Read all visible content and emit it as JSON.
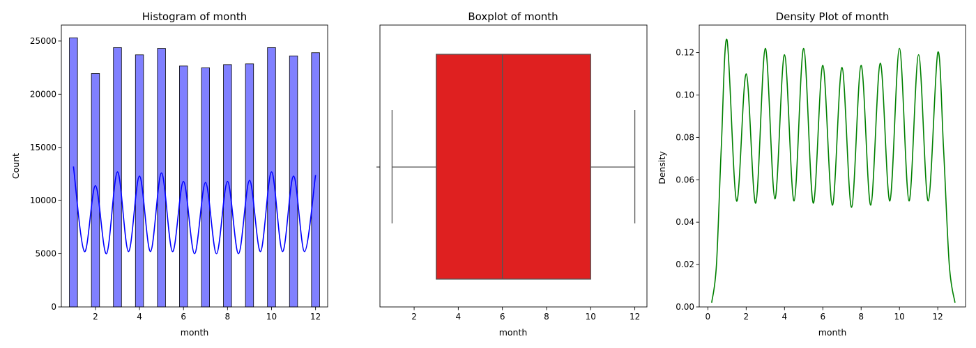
{
  "chart_data": [
    {
      "type": "bar",
      "title": "Histogram of month",
      "xlabel": "month",
      "ylabel": "Count",
      "xlim": [
        0.45,
        12.55
      ],
      "ylim": [
        0,
        26500
      ],
      "xticks": [
        2,
        4,
        6,
        8,
        10,
        12
      ],
      "yticks": [
        0,
        5000,
        10000,
        15000,
        20000,
        25000
      ],
      "bar_color": "#8080ff",
      "bar_edge": "#000000",
      "bar_width": 0.367,
      "categories": [
        1,
        2,
        3,
        4,
        5,
        6,
        7,
        8,
        9,
        10,
        11,
        12
      ],
      "values": [
        25300,
        21950,
        24380,
        23700,
        24300,
        22650,
        22480,
        22780,
        22850,
        24380,
        23600,
        23900
      ],
      "kde": {
        "color": "#0000ff",
        "x": [
          1.0,
          1.5,
          2.0,
          2.5,
          3.0,
          3.5,
          4.0,
          4.5,
          5.0,
          5.5,
          6.0,
          6.5,
          7.0,
          7.5,
          8.0,
          8.5,
          9.0,
          9.5,
          10.0,
          10.5,
          11.0,
          11.5,
          12.0
        ],
        "y": [
          13200,
          5200,
          11400,
          5000,
          12700,
          5200,
          12300,
          5200,
          12600,
          5200,
          11800,
          5000,
          11700,
          5000,
          11800,
          5000,
          11900,
          5200,
          12700,
          5200,
          12300,
          5200,
          12400
        ]
      }
    },
    {
      "type": "box",
      "title": "Boxplot of month",
      "xlabel": "month",
      "xlim": [
        0.45,
        12.55
      ],
      "xticks": [
        2,
        4,
        6,
        8,
        10,
        12
      ],
      "box_color": "#df2020",
      "line_color": "#555555",
      "whisker_low": 1,
      "q1": 3,
      "median": 6,
      "q3": 10,
      "whisker_high": 12
    },
    {
      "type": "line",
      "title": "Density Plot of month",
      "xlabel": "month",
      "ylabel": "Density",
      "xlim": [
        -0.45,
        13.45
      ],
      "ylim": [
        0,
        0.133
      ],
      "xticks": [
        0,
        2,
        4,
        6,
        8,
        10,
        12
      ],
      "yticks": [
        0.0,
        0.02,
        0.04,
        0.06,
        0.08,
        0.1,
        0.12
      ],
      "ytick_labels": [
        "0.00",
        "0.02",
        "0.04",
        "0.06",
        "0.08",
        "0.10",
        "0.12"
      ],
      "line_color": "#008000",
      "x": [
        0.2,
        0.45,
        0.7,
        1.0,
        1.5,
        2.0,
        2.5,
        3.0,
        3.5,
        4.0,
        4.5,
        5.0,
        5.5,
        6.0,
        6.5,
        7.0,
        7.5,
        8.0,
        8.5,
        9.0,
        9.5,
        10.0,
        10.5,
        11.0,
        11.5,
        12.0,
        12.3,
        12.6,
        12.9
      ],
      "y": [
        0.002,
        0.02,
        0.075,
        0.126,
        0.05,
        0.11,
        0.049,
        0.122,
        0.051,
        0.119,
        0.05,
        0.122,
        0.049,
        0.114,
        0.048,
        0.113,
        0.047,
        0.114,
        0.048,
        0.115,
        0.05,
        0.122,
        0.05,
        0.119,
        0.05,
        0.12,
        0.075,
        0.02,
        0.002
      ]
    }
  ]
}
